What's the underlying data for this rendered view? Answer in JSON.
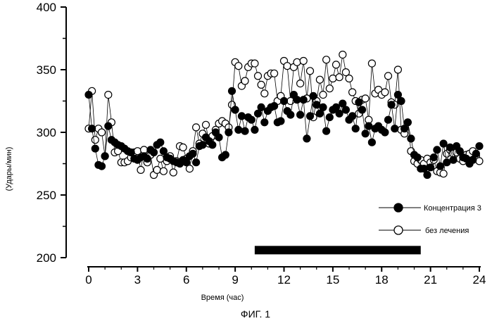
{
  "chart_data": {
    "type": "scatter",
    "title": "",
    "caption": "ФИГ. 1",
    "xlabel": "Время  (час)",
    "ylabel": "(Удары/мин)",
    "xlim": [
      0,
      24
    ],
    "ylim": [
      200,
      400
    ],
    "xticks": [
      "0",
      "3",
      "6",
      "9",
      "12",
      "15",
      "18",
      "21",
      "24"
    ],
    "yticks": [
      "200",
      "250",
      "300",
      "350",
      "400"
    ],
    "legend_position": "bottom-right",
    "treatment_bar": {
      "start": 10.2,
      "end": 20.4,
      "level": 206
    },
    "series": [
      {
        "name": "Концентрация 3",
        "marker": "filled-circle",
        "x": [
          0,
          0.2,
          0.4,
          0.6,
          0.8,
          1.0,
          1.2,
          1.4,
          1.6,
          1.8,
          2.0,
          2.2,
          2.4,
          2.6,
          2.8,
          3.0,
          3.2,
          3.4,
          3.6,
          3.8,
          4.0,
          4.2,
          4.4,
          4.6,
          4.8,
          5.0,
          5.2,
          5.4,
          5.6,
          5.8,
          6.0,
          6.2,
          6.4,
          6.6,
          6.8,
          7.0,
          7.2,
          7.4,
          7.6,
          7.8,
          8.0,
          8.2,
          8.4,
          8.6,
          8.8,
          9.0,
          9.2,
          9.4,
          9.6,
          9.8,
          10.0,
          10.2,
          10.4,
          10.6,
          10.8,
          11.0,
          11.2,
          11.4,
          11.6,
          11.8,
          12.0,
          12.2,
          12.4,
          12.6,
          12.8,
          13.0,
          13.2,
          13.4,
          13.6,
          13.8,
          14.0,
          14.2,
          14.4,
          14.6,
          14.8,
          15.0,
          15.2,
          15.4,
          15.6,
          15.8,
          16.0,
          16.2,
          16.4,
          16.6,
          16.8,
          17.0,
          17.2,
          17.4,
          17.6,
          17.8,
          18.0,
          18.2,
          18.4,
          18.6,
          18.8,
          19.0,
          19.2,
          19.4,
          19.6,
          19.8,
          20.0,
          20.2,
          20.4,
          20.6,
          20.8,
          21.0,
          21.2,
          21.4,
          21.6,
          21.8,
          22.0,
          22.2,
          22.4,
          22.6,
          22.8,
          23.0,
          23.2,
          23.4,
          23.6,
          23.8,
          24.0
        ],
        "values": [
          330,
          303,
          287,
          274,
          273,
          281,
          305,
          294,
          292,
          290,
          289,
          287,
          285,
          284,
          279,
          278,
          280,
          281,
          279,
          286,
          284,
          290,
          292,
          285,
          280,
          279,
          277,
          276,
          275,
          278,
          276,
          281,
          283,
          276,
          289,
          290,
          296,
          293,
          290,
          300,
          296,
          280,
          282,
          300,
          333,
          318,
          302,
          313,
          301,
          312,
          310,
          302,
          315,
          320,
          308,
          317,
          320,
          321,
          308,
          309,
          325,
          317,
          314,
          330,
          326,
          314,
          326,
          295,
          313,
          329,
          322,
          315,
          320,
          301,
          312,
          318,
          320,
          315,
          323,
          318,
          310,
          313,
          303,
          324,
          318,
          299,
          305,
          292,
          303,
          305,
          302,
          300,
          310,
          322,
          303,
          330,
          325,
          303,
          308,
          295,
          282,
          280,
          271,
          271,
          266,
          272,
          280,
          286,
          273,
          291,
          276,
          288,
          278,
          289,
          285,
          280,
          279,
          275,
          278,
          283,
          289
        ]
      },
      {
        "name": "без лечения",
        "marker": "open-circle",
        "x": [
          0,
          0.2,
          0.4,
          0.6,
          0.8,
          1.0,
          1.2,
          1.4,
          1.6,
          1.8,
          2.0,
          2.2,
          2.4,
          2.6,
          2.8,
          3.0,
          3.2,
          3.4,
          3.6,
          3.8,
          4.0,
          4.2,
          4.4,
          4.6,
          4.8,
          5.0,
          5.2,
          5.4,
          5.6,
          5.8,
          6.0,
          6.2,
          6.4,
          6.6,
          6.8,
          7.0,
          7.2,
          7.4,
          7.6,
          7.8,
          8.0,
          8.2,
          8.4,
          8.6,
          8.8,
          9.0,
          9.2,
          9.4,
          9.6,
          9.8,
          10.0,
          10.2,
          10.4,
          10.6,
          10.8,
          11.0,
          11.2,
          11.4,
          11.6,
          11.8,
          12.0,
          12.2,
          12.4,
          12.6,
          12.8,
          13.0,
          13.2,
          13.4,
          13.6,
          13.8,
          14.0,
          14.2,
          14.4,
          14.6,
          14.8,
          15.0,
          15.2,
          15.4,
          15.6,
          15.8,
          16.0,
          16.2,
          16.4,
          16.6,
          16.8,
          17.0,
          17.2,
          17.4,
          17.6,
          17.8,
          18.0,
          18.2,
          18.4,
          18.6,
          18.8,
          19.0,
          19.2,
          19.4,
          19.6,
          19.8,
          20.0,
          20.2,
          20.4,
          20.6,
          20.8,
          21.0,
          21.2,
          21.4,
          21.6,
          21.8,
          22.0,
          22.2,
          22.4,
          22.6,
          22.8,
          23.0,
          23.2,
          23.4,
          23.6,
          23.8,
          24.0
        ],
        "values": [
          303,
          333,
          294,
          303,
          300,
          281,
          330,
          308,
          284,
          285,
          276,
          276,
          277,
          280,
          284,
          285,
          270,
          286,
          276,
          282,
          266,
          270,
          279,
          269,
          277,
          281,
          268,
          277,
          289,
          288,
          279,
          271,
          285,
          304,
          291,
          299,
          306,
          291,
          297,
          302,
          307,
          309,
          307,
          304,
          322,
          356,
          353,
          337,
          341,
          352,
          355,
          355,
          345,
          338,
          331,
          345,
          347,
          347,
          325,
          329,
          357,
          353,
          325,
          352,
          356,
          339,
          357,
          327,
          349,
          312,
          325,
          342,
          330,
          358,
          335,
          343,
          354,
          344,
          362,
          348,
          343,
          332,
          325,
          315,
          326,
          327,
          310,
          355,
          331,
          334,
          330,
          332,
          345,
          324,
          322,
          350,
          302,
          299,
          308,
          285,
          277,
          275,
          278,
          275,
          279,
          276,
          278,
          269,
          268,
          267,
          283,
          286,
          283,
          284,
          279,
          277,
          282,
          283,
          285,
          281,
          277
        ]
      }
    ]
  }
}
